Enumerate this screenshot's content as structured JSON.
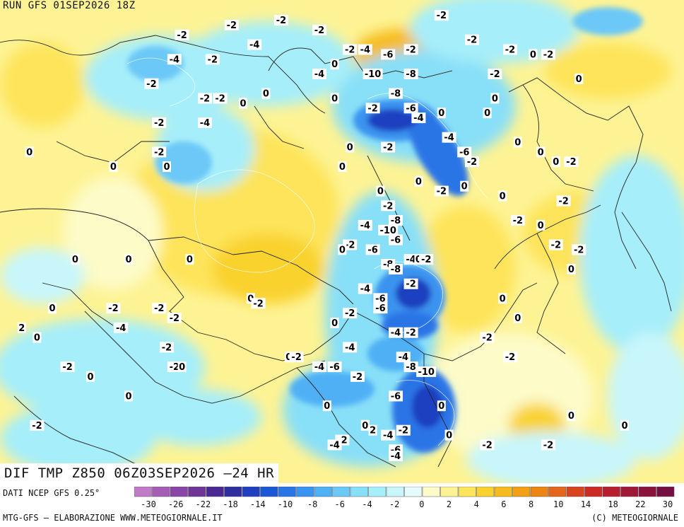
{
  "header": {
    "run_label": "RUN GFS 01SEP2026 18Z"
  },
  "map_title": "DIF TMP Z850 06Z03SEP2026 –24 HR",
  "footer": {
    "data_source": "DATI NCEP GFS 0.25°",
    "credits_left": "MTG-GFS – ELABORAZIONE WWW.METEOGIORNALE.IT",
    "credits_right": "(C) METEOGIORNALE"
  },
  "legend": {
    "tick_labels": [
      "-30",
      "-26",
      "-22",
      "-18",
      "-14",
      "-10",
      "-8",
      "-6",
      "-4",
      "-2",
      "0",
      "2",
      "4",
      "6",
      "8",
      "10",
      "14",
      "18",
      "22",
      "30"
    ],
    "swatch_colors": [
      "#c07ac8",
      "#a55db6",
      "#8a46a6",
      "#6f3597",
      "#4a2a92",
      "#2f2fa0",
      "#1f3fc0",
      "#1c57d8",
      "#2a74e6",
      "#3a93f0",
      "#4fb0f5",
      "#6cc8f7",
      "#88dff8",
      "#a6eefa",
      "#c8f6fb",
      "#e6fbfb",
      "#fdfbc8",
      "#fdf394",
      "#fde45a",
      "#f9d22d",
      "#f6bb1f",
      "#f2a016",
      "#ec8513",
      "#e4661a",
      "#d9431f",
      "#cc2a25",
      "#b81f2e",
      "#a11836",
      "#8b143c",
      "#741041"
    ]
  },
  "map_labels": [
    {
      "text": "-2",
      "lon": 44,
      "lat": 74,
      "v": -2
    },
    {
      "text": "-2",
      "lon": 57,
      "lat": 76,
      "v": -2
    },
    {
      "text": "-2",
      "lon": 70,
      "lat": 77,
      "v": -2
    },
    {
      "text": "-4",
      "lon": 63,
      "lat": 72,
      "v": -4
    },
    {
      "text": "-2",
      "lon": 80,
      "lat": 75,
      "v": -2
    },
    {
      "text": "-4",
      "lon": 42,
      "lat": 69,
      "v": -4
    },
    {
      "text": "-2",
      "lon": 52,
      "lat": 69,
      "v": -2
    },
    {
      "text": "-2",
      "lon": 36,
      "lat": 64,
      "v": -2
    },
    {
      "text": "-2",
      "lon": 50,
      "lat": 61,
      "v": -2
    },
    {
      "text": "-2",
      "lon": 54,
      "lat": 61,
      "v": -2
    },
    {
      "text": "0",
      "lon": 60,
      "lat": 60,
      "v": 0
    },
    {
      "text": "0",
      "lon": 66,
      "lat": 62,
      "v": 0
    },
    {
      "text": "-2",
      "lon": 38,
      "lat": 56,
      "v": -2
    },
    {
      "text": "-4",
      "lon": 50,
      "lat": 56,
      "v": -4
    },
    {
      "text": "-2",
      "lon": 38,
      "lat": 50,
      "v": -2
    },
    {
      "text": "0",
      "lon": 26,
      "lat": 47,
      "v": 0
    },
    {
      "text": "0",
      "lon": 40,
      "lat": 47,
      "v": 0
    },
    {
      "text": "-4",
      "lon": 80,
      "lat": 66,
      "v": -4
    },
    {
      "text": "0",
      "lon": 84,
      "lat": 68,
      "v": 0
    },
    {
      "text": "0",
      "lon": 84,
      "lat": 61,
      "v": 0
    },
    {
      "text": "-2",
      "lon": 88,
      "lat": 71,
      "v": -2
    },
    {
      "text": "-4",
      "lon": 92,
      "lat": 71,
      "v": -4
    },
    {
      "text": "-6",
      "lon": 98,
      "lat": 70,
      "v": -6
    },
    {
      "text": "-2",
      "lon": 104,
      "lat": 71,
      "v": -2
    },
    {
      "text": "-10",
      "lon": 94,
      "lat": 66,
      "v": -10
    },
    {
      "text": "-8",
      "lon": 104,
      "lat": 66,
      "v": -8
    },
    {
      "text": "-8",
      "lon": 100,
      "lat": 62,
      "v": -8
    },
    {
      "text": "-2",
      "lon": 94,
      "lat": 59,
      "v": -2
    },
    {
      "text": "-6",
      "lon": 104,
      "lat": 59,
      "v": -6
    },
    {
      "text": "-4",
      "lon": 106,
      "lat": 57,
      "v": -4
    },
    {
      "text": "0",
      "lon": 112,
      "lat": 58,
      "v": 0
    },
    {
      "text": "-4",
      "lon": 114,
      "lat": 53,
      "v": -4
    },
    {
      "text": "0",
      "lon": 88,
      "lat": 51,
      "v": 0
    },
    {
      "text": "-2",
      "lon": 98,
      "lat": 51,
      "v": -2
    },
    {
      "text": "0",
      "lon": 86,
      "lat": 47,
      "v": 0
    },
    {
      "text": "-6",
      "lon": 118,
      "lat": 50,
      "v": -6
    },
    {
      "text": "-2",
      "lon": 120,
      "lat": 48,
      "v": -2
    },
    {
      "text": "0",
      "lon": 106,
      "lat": 44,
      "v": 0
    },
    {
      "text": "0",
      "lon": 96,
      "lat": 42,
      "v": 0
    },
    {
      "text": "-2",
      "lon": 112,
      "lat": 42,
      "v": -2
    },
    {
      "text": "0",
      "lon": 118,
      "lat": 43,
      "v": 0
    },
    {
      "text": "-2",
      "lon": 98,
      "lat": 39,
      "v": -2
    },
    {
      "text": "-4",
      "lon": 92,
      "lat": 35,
      "v": -4
    },
    {
      "text": "-8",
      "lon": 100,
      "lat": 36,
      "v": -8
    },
    {
      "text": "-10",
      "lon": 98,
      "lat": 34,
      "v": -10
    },
    {
      "text": "-6",
      "lon": 100,
      "lat": 32,
      "v": -6
    },
    {
      "text": "-6",
      "lon": 94,
      "lat": 30,
      "v": -6
    },
    {
      "text": "-2",
      "lon": 88,
      "lat": 31,
      "v": -2
    },
    {
      "text": "0",
      "lon": 86,
      "lat": 30,
      "v": 0
    },
    {
      "text": "-8",
      "lon": 98,
      "lat": 27,
      "v": -8
    },
    {
      "text": "-8",
      "lon": 100,
      "lat": 26,
      "v": -8
    },
    {
      "text": "-4",
      "lon": 104,
      "lat": 28,
      "v": -4
    },
    {
      "text": "0",
      "lon": 106,
      "lat": 28,
      "v": 0
    },
    {
      "text": "-2",
      "lon": 108,
      "lat": 28,
      "v": -2
    },
    {
      "text": "-2",
      "lon": 104,
      "lat": 23,
      "v": -2
    },
    {
      "text": "-4",
      "lon": 92,
      "lat": 22,
      "v": -4
    },
    {
      "text": "-6",
      "lon": 96,
      "lat": 20,
      "v": -6
    },
    {
      "text": "-6",
      "lon": 96,
      "lat": 18,
      "v": -6
    },
    {
      "text": "-2",
      "lon": 88,
      "lat": 17,
      "v": -2
    },
    {
      "text": "0",
      "lon": 84,
      "lat": 15,
      "v": 0
    },
    {
      "text": "-4",
      "lon": 100,
      "lat": 13,
      "v": -4
    },
    {
      "text": "-2",
      "lon": 104,
      "lat": 13,
      "v": -2
    },
    {
      "text": "-4",
      "lon": 88,
      "lat": 10,
      "v": -4
    },
    {
      "text": "-6",
      "lon": 84,
      "lat": 6,
      "v": -6
    },
    {
      "text": "-4",
      "lon": 80,
      "lat": 6,
      "v": -4
    },
    {
      "text": "-2",
      "lon": 90,
      "lat": 4,
      "v": -2
    },
    {
      "text": "0",
      "lon": 72,
      "lat": 8,
      "v": 0
    },
    {
      "text": "-2",
      "lon": 74,
      "lat": 8,
      "v": -2
    },
    {
      "text": "-4",
      "lon": 102,
      "lat": 8,
      "v": -4
    },
    {
      "text": "-8",
      "lon": 104,
      "lat": 6,
      "v": -8
    },
    {
      "text": "-10",
      "lon": 108,
      "lat": 5,
      "v": -10
    },
    {
      "text": "-6",
      "lon": 100,
      "lat": 0,
      "v": -6
    },
    {
      "text": "0",
      "lon": 82,
      "lat": -2,
      "v": 0
    },
    {
      "text": "0",
      "lon": 92,
      "lat": -6,
      "v": 0
    },
    {
      "text": "2",
      "lon": 94,
      "lat": -7,
      "v": 2
    },
    {
      "text": "-4",
      "lon": 98,
      "lat": -8,
      "v": -4
    },
    {
      "text": "-2",
      "lon": 102,
      "lat": -7,
      "v": -2
    },
    {
      "text": "-2",
      "lon": 86,
      "lat": -9,
      "v": -2
    },
    {
      "text": "-4",
      "lon": 84,
      "lat": -10,
      "v": -4
    },
    {
      "text": "-6",
      "lon": 100,
      "lat": -11,
      "v": -6
    },
    {
      "text": "-4",
      "lon": 100,
      "lat": -13,
      "v": -4
    },
    {
      "text": "0",
      "lon": 112,
      "lat": -2,
      "v": 0
    },
    {
      "text": "0",
      "lon": 114,
      "lat": -8,
      "v": 0
    },
    {
      "text": "-2",
      "lon": 124,
      "lat": -10,
      "v": -2
    },
    {
      "text": "-2",
      "lon": 130,
      "lat": 8,
      "v": -2
    },
    {
      "text": "0",
      "lon": 128,
      "lat": 20,
      "v": 0
    },
    {
      "text": "0",
      "lon": 132,
      "lat": 16,
      "v": 0
    },
    {
      "text": "-2",
      "lon": 140,
      "lat": -10,
      "v": -2
    },
    {
      "text": "0",
      "lon": 146,
      "lat": -4,
      "v": 0
    },
    {
      "text": "-2",
      "lon": 112,
      "lat": 78,
      "v": -2
    },
    {
      "text": "-2",
      "lon": 120,
      "lat": 73,
      "v": -2
    },
    {
      "text": "-2",
      "lon": 130,
      "lat": 71,
      "v": -2
    },
    {
      "text": "0",
      "lon": 136,
      "lat": 70,
      "v": 0
    },
    {
      "text": "-2",
      "lon": 140,
      "lat": 70,
      "v": -2
    },
    {
      "text": "-2",
      "lon": 126,
      "lat": 66,
      "v": -2
    },
    {
      "text": "0",
      "lon": 126,
      "lat": 61,
      "v": 0
    },
    {
      "text": "0",
      "lon": 124,
      "lat": 58,
      "v": 0
    },
    {
      "text": "0",
      "lon": 148,
      "lat": 65,
      "v": 0
    },
    {
      "text": "0",
      "lon": 132,
      "lat": 52,
      "v": 0
    },
    {
      "text": "0",
      "lon": 138,
      "lat": 50,
      "v": 0
    },
    {
      "text": "0",
      "lon": 142,
      "lat": 48,
      "v": 0
    },
    {
      "text": "-2",
      "lon": 146,
      "lat": 48,
      "v": -2
    },
    {
      "text": "-2",
      "lon": 144,
      "lat": 40,
      "v": -2
    },
    {
      "text": "0",
      "lon": 128,
      "lat": 41,
      "v": 0
    },
    {
      "text": "-2",
      "lon": 132,
      "lat": 36,
      "v": -2
    },
    {
      "text": "0",
      "lon": 138,
      "lat": 35,
      "v": 0
    },
    {
      "text": "-2",
      "lon": 142,
      "lat": 31,
      "v": -2
    },
    {
      "text": "-2",
      "lon": 148,
      "lat": 30,
      "v": -2
    },
    {
      "text": "0",
      "lon": 146,
      "lat": 26,
      "v": 0
    },
    {
      "text": "-2",
      "lon": 124,
      "lat": 12,
      "v": -2
    },
    {
      "text": "0",
      "lon": 16,
      "lat": 28,
      "v": 0
    },
    {
      "text": "0",
      "lon": 30,
      "lat": 28,
      "v": 0
    },
    {
      "text": "0",
      "lon": 46,
      "lat": 28,
      "v": 0
    },
    {
      "text": "-2",
      "lon": 26,
      "lat": 18,
      "v": -2
    },
    {
      "text": "0",
      "lon": 10,
      "lat": 18,
      "v": 0
    },
    {
      "text": "-4",
      "lon": 28,
      "lat": 14,
      "v": -4
    },
    {
      "text": "-2",
      "lon": 38,
      "lat": 18,
      "v": -2
    },
    {
      "text": "-2",
      "lon": 42,
      "lat": 16,
      "v": -2
    },
    {
      "text": "-2",
      "lon": 40,
      "lat": 10,
      "v": -2
    },
    {
      "text": "-2",
      "lon": 42,
      "lat": 6,
      "v": -2
    },
    {
      "text": "0",
      "lon": 44,
      "lat": 6,
      "v": 0
    },
    {
      "text": "-2",
      "lon": 14,
      "lat": 6,
      "v": -2
    },
    {
      "text": "0",
      "lon": 20,
      "lat": 4,
      "v": 0
    },
    {
      "text": "0",
      "lon": 30,
      "lat": 0,
      "v": 0
    },
    {
      "text": "-2",
      "lon": 6,
      "lat": -6,
      "v": -2
    },
    {
      "text": "2",
      "lon": 2,
      "lat": 14,
      "v": 2
    },
    {
      "text": "0",
      "lon": 6,
      "lat": 12,
      "v": 0
    },
    {
      "text": "0",
      "lon": 62,
      "lat": 20,
      "v": 0
    },
    {
      "text": "-2",
      "lon": 64,
      "lat": 19,
      "v": -2
    },
    {
      "text": "0",
      "lon": 4,
      "lat": 50,
      "v": 0
    },
    {
      "text": "0",
      "lon": 160,
      "lat": -6,
      "v": 0
    }
  ]
}
